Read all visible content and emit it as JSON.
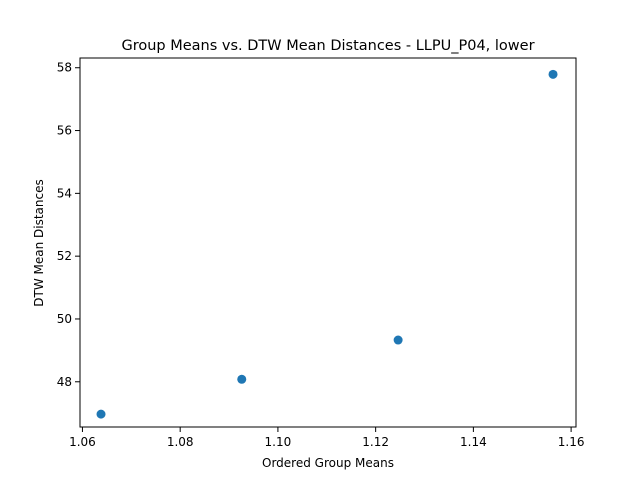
{
  "chart_data": {
    "type": "scatter",
    "title": "Group Means vs. DTW Mean Distances - LLPU_P04, lower",
    "xlabel": "Ordered Group Means",
    "ylabel": "DTW Mean Distances",
    "xlim": [
      1.0595,
      1.161
    ],
    "ylim": [
      46.56,
      58.31
    ],
    "xticks": [
      1.06,
      1.08,
      1.1,
      1.12,
      1.14,
      1.16
    ],
    "xtick_labels": [
      "1.06",
      "1.08",
      "1.10",
      "1.12",
      "1.14",
      "1.16"
    ],
    "yticks": [
      48,
      50,
      52,
      54,
      56,
      58
    ],
    "ytick_labels": [
      "48",
      "50",
      "52",
      "54",
      "56",
      "58"
    ],
    "grid": false,
    "marker_color": "#1f77b4",
    "series": [
      {
        "x": [
          1.0638,
          1.0926,
          1.1246,
          1.1563
        ],
        "y": [
          46.97,
          48.08,
          49.33,
          57.79
        ]
      }
    ]
  }
}
